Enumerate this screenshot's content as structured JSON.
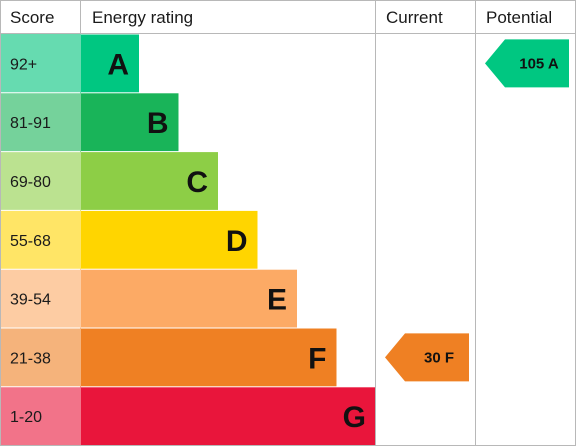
{
  "chart_data": {
    "type": "bar",
    "headers": {
      "score": "Score",
      "rating": "Energy rating",
      "current": "Current",
      "potential": "Potential"
    },
    "bands": [
      {
        "letter": "A",
        "range": "92+",
        "color": "#00c781",
        "score_bg": "#66dbb0"
      },
      {
        "letter": "B",
        "range": "81-91",
        "color": "#19b459",
        "score_bg": "#75d29b"
      },
      {
        "letter": "C",
        "range": "69-80",
        "color": "#8dce46",
        "score_bg": "#bbe290"
      },
      {
        "letter": "D",
        "range": "55-68",
        "color": "#ffd500",
        "score_bg": "#ffe566"
      },
      {
        "letter": "E",
        "range": "39-54",
        "color": "#fcaa65",
        "score_bg": "#fdcca3"
      },
      {
        "letter": "F",
        "range": "21-38",
        "color": "#ef8023",
        "score_bg": "#f5b37b"
      },
      {
        "letter": "G",
        "range": "1-20",
        "color": "#e9153b",
        "score_bg": "#f27389"
      }
    ],
    "current": {
      "value": 30,
      "band": "F",
      "label": "30 F",
      "color": "#ef8023"
    },
    "potential": {
      "value": 105,
      "band": "A",
      "label": "105 A",
      "color": "#00c781"
    }
  }
}
